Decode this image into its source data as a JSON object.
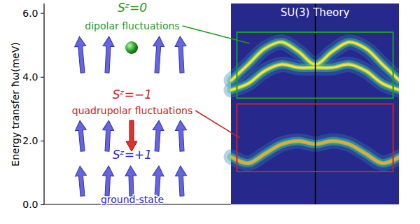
{
  "chart_data": {
    "type": "line",
    "title": "SU(3) Theory",
    "ylabel": "Energy transfer ħω(meV)",
    "x": [
      -1,
      -0.8,
      -0.6,
      -0.4,
      -0.2,
      0,
      0.2,
      0.4,
      0.6,
      0.8,
      1
    ],
    "series": [
      {
        "color": "#f7e43a",
        "values": [
          3.9,
          4.4,
          4.9,
          5.1,
          4.8,
          4.4,
          4.8,
          5.1,
          4.9,
          4.4,
          3.9
        ]
      },
      {
        "color": "#f7e43a",
        "values": [
          3.6,
          3.8,
          4.2,
          4.4,
          4.3,
          4.3,
          4.3,
          4.4,
          4.2,
          3.8,
          3.6
        ]
      },
      {
        "color": "#f2a43a",
        "values": [
          1.5,
          1.3,
          1.6,
          1.9,
          2.0,
          1.9,
          2.0,
          1.9,
          1.6,
          1.3,
          1.5
        ]
      }
    ],
    "xlim": [
      -1,
      1
    ],
    "ylim": [
      0,
      6.3
    ],
    "yticks": [
      0,
      2,
      4,
      6
    ],
    "tick_labels": "y",
    "vertical_line_x": 0,
    "states": [
      {
        "label": "Sᶻ=0",
        "description": "dipolar fluctuations",
        "color": "#1f9a1f",
        "box": {
          "xlim": [
            -0.93,
            0.93
          ],
          "ylim": [
            3.33,
            5.4
          ]
        }
      },
      {
        "label": "Sᶻ=−1",
        "description": "quadrupolar fluctuations",
        "color": "#cc2222",
        "box": {
          "xlim": [
            -0.93,
            0.93
          ],
          "ylim": [
            1.03,
            3.15
          ]
        }
      },
      {
        "label": "Sᶻ=+1",
        "description": "ground-state",
        "color": "#2a2ad8"
      }
    ]
  }
}
